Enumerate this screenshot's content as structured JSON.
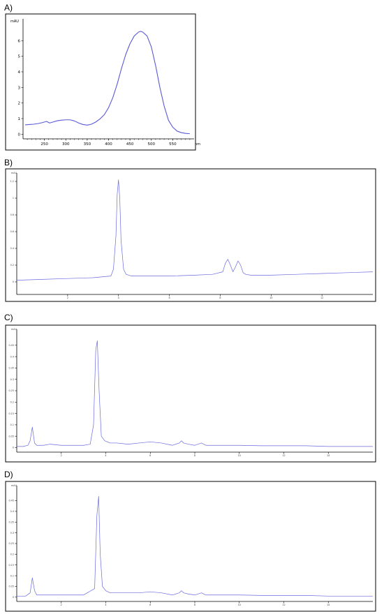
{
  "chart_data": [
    {
      "panel_label": "A)",
      "type": "line",
      "ylabel": "mAU",
      "xlabel": "nm",
      "xlim": [
        200,
        600
      ],
      "ylim": [
        -0.3,
        7.4
      ],
      "x_ticks": [
        250,
        300,
        350,
        400,
        450,
        500,
        550
      ],
      "y_ticks": [
        0,
        1,
        2,
        3,
        4,
        5,
        6
      ],
      "series": [
        {
          "x": [
            205,
            215,
            225,
            235,
            245,
            255,
            262,
            270,
            280,
            290,
            300,
            310,
            320,
            330,
            340,
            350,
            360,
            370,
            380,
            390,
            400,
            410,
            420,
            430,
            440,
            450,
            460,
            470,
            475,
            480,
            490,
            500,
            510,
            520,
            530,
            540,
            550,
            560,
            570,
            580,
            590
          ],
          "values": [
            0.6,
            0.62,
            0.64,
            0.68,
            0.74,
            0.82,
            0.72,
            0.78,
            0.86,
            0.9,
            0.92,
            0.92,
            0.85,
            0.72,
            0.62,
            0.58,
            0.64,
            0.78,
            0.98,
            1.25,
            1.7,
            2.35,
            3.2,
            4.2,
            5.1,
            5.8,
            6.3,
            6.55,
            6.6,
            6.55,
            6.3,
            5.6,
            4.4,
            3.0,
            1.8,
            0.9,
            0.45,
            0.2,
            0.1,
            0.05,
            0.03
          ]
        }
      ]
    },
    {
      "panel_label": "B)",
      "type": "line",
      "ylabel": "mAU",
      "xlim": [
        0,
        14
      ],
      "ylim": [
        -0.15,
        1.3
      ],
      "x_ticks": [
        2,
        4,
        6,
        8,
        10,
        12
      ],
      "y_ticks": [
        0,
        0.2,
        0.4,
        0.6,
        0.8,
        1.0,
        1.2
      ],
      "series": [
        {
          "x": [
            0,
            1,
            2,
            3,
            3.7,
            3.8,
            3.9,
            3.95,
            4.0,
            4.05,
            4.1,
            4.2,
            4.3,
            4.5,
            5,
            6,
            7,
            7.7,
            8.1,
            8.2,
            8.3,
            8.4,
            8.5,
            8.6,
            8.7,
            8.8,
            8.9,
            9.0,
            9.2,
            10,
            11,
            12,
            13,
            14
          ],
          "values": [
            0.02,
            0.03,
            0.04,
            0.05,
            0.07,
            0.15,
            0.55,
            1.05,
            1.22,
            1.0,
            0.5,
            0.15,
            0.09,
            0.07,
            0.07,
            0.07,
            0.08,
            0.09,
            0.12,
            0.22,
            0.27,
            0.2,
            0.12,
            0.18,
            0.25,
            0.2,
            0.11,
            0.09,
            0.08,
            0.08,
            0.09,
            0.1,
            0.11,
            0.12
          ]
        }
      ]
    },
    {
      "panel_label": "C)",
      "type": "line",
      "ylabel": "mAU",
      "xlim": [
        0,
        16
      ],
      "ylim": [
        -0.02,
        0.52
      ],
      "x_ticks": [
        2,
        4,
        6,
        8,
        10,
        12,
        14
      ],
      "y_ticks": [
        0,
        0.05,
        0.1,
        0.15,
        0.2,
        0.25,
        0.3,
        0.35,
        0.4,
        0.45
      ],
      "series": [
        {
          "x": [
            0,
            0.3,
            0.5,
            0.6,
            0.7,
            0.8,
            0.9,
            1.0,
            1.2,
            1.5,
            2,
            2.5,
            3,
            3.3,
            3.45,
            3.55,
            3.62,
            3.7,
            3.8,
            3.95,
            4.2,
            4.5,
            5,
            5.5,
            6,
            6.5,
            7,
            7.3,
            7.4,
            7.5,
            7.7,
            8,
            8.3,
            8.5,
            9,
            10,
            11,
            12,
            13,
            14,
            15,
            16
          ],
          "values": [
            0.005,
            0.005,
            0.01,
            0.03,
            0.09,
            0.02,
            0.01,
            0.01,
            0.01,
            0.015,
            0.01,
            0.01,
            0.01,
            0.015,
            0.1,
            0.43,
            0.47,
            0.25,
            0.05,
            0.03,
            0.02,
            0.02,
            0.015,
            0.02,
            0.025,
            0.02,
            0.01,
            0.02,
            0.03,
            0.02,
            0.015,
            0.01,
            0.02,
            0.01,
            0.01,
            0.01,
            0.008,
            0.008,
            0.008,
            0.005,
            0.005,
            0.005
          ]
        }
      ]
    },
    {
      "panel_label": "D)",
      "type": "line",
      "ylabel": "mAU",
      "xlim": [
        0,
        16
      ],
      "ylim": [
        -0.02,
        0.52
      ],
      "x_ticks": [
        2,
        4,
        6,
        8,
        10,
        12,
        14
      ],
      "y_ticks": [
        0,
        0.05,
        0.1,
        0.15,
        0.2,
        0.25,
        0.3,
        0.35,
        0.4,
        0.45
      ],
      "series": [
        {
          "x": [
            0,
            0.4,
            0.6,
            0.7,
            0.8,
            0.9,
            1.0,
            1.2,
            1.5,
            2,
            2.5,
            3,
            3.5,
            3.6,
            3.68,
            3.75,
            3.85,
            4.0,
            4.2,
            4.5,
            5,
            5.5,
            6,
            6.5,
            7,
            7.3,
            7.4,
            7.5,
            7.7,
            8,
            8.3,
            8.5,
            9,
            10,
            11,
            12,
            13,
            14,
            15,
            16
          ],
          "values": [
            0.005,
            0.005,
            0.02,
            0.09,
            0.03,
            0.01,
            0.01,
            0.01,
            0.01,
            0.01,
            0.01,
            0.01,
            0.04,
            0.38,
            0.47,
            0.2,
            0.05,
            0.03,
            0.02,
            0.02,
            0.02,
            0.02,
            0.025,
            0.02,
            0.01,
            0.02,
            0.03,
            0.02,
            0.015,
            0.01,
            0.02,
            0.01,
            0.01,
            0.01,
            0.008,
            0.008,
            0.008,
            0.005,
            0.005,
            0.005
          ]
        }
      ]
    }
  ]
}
